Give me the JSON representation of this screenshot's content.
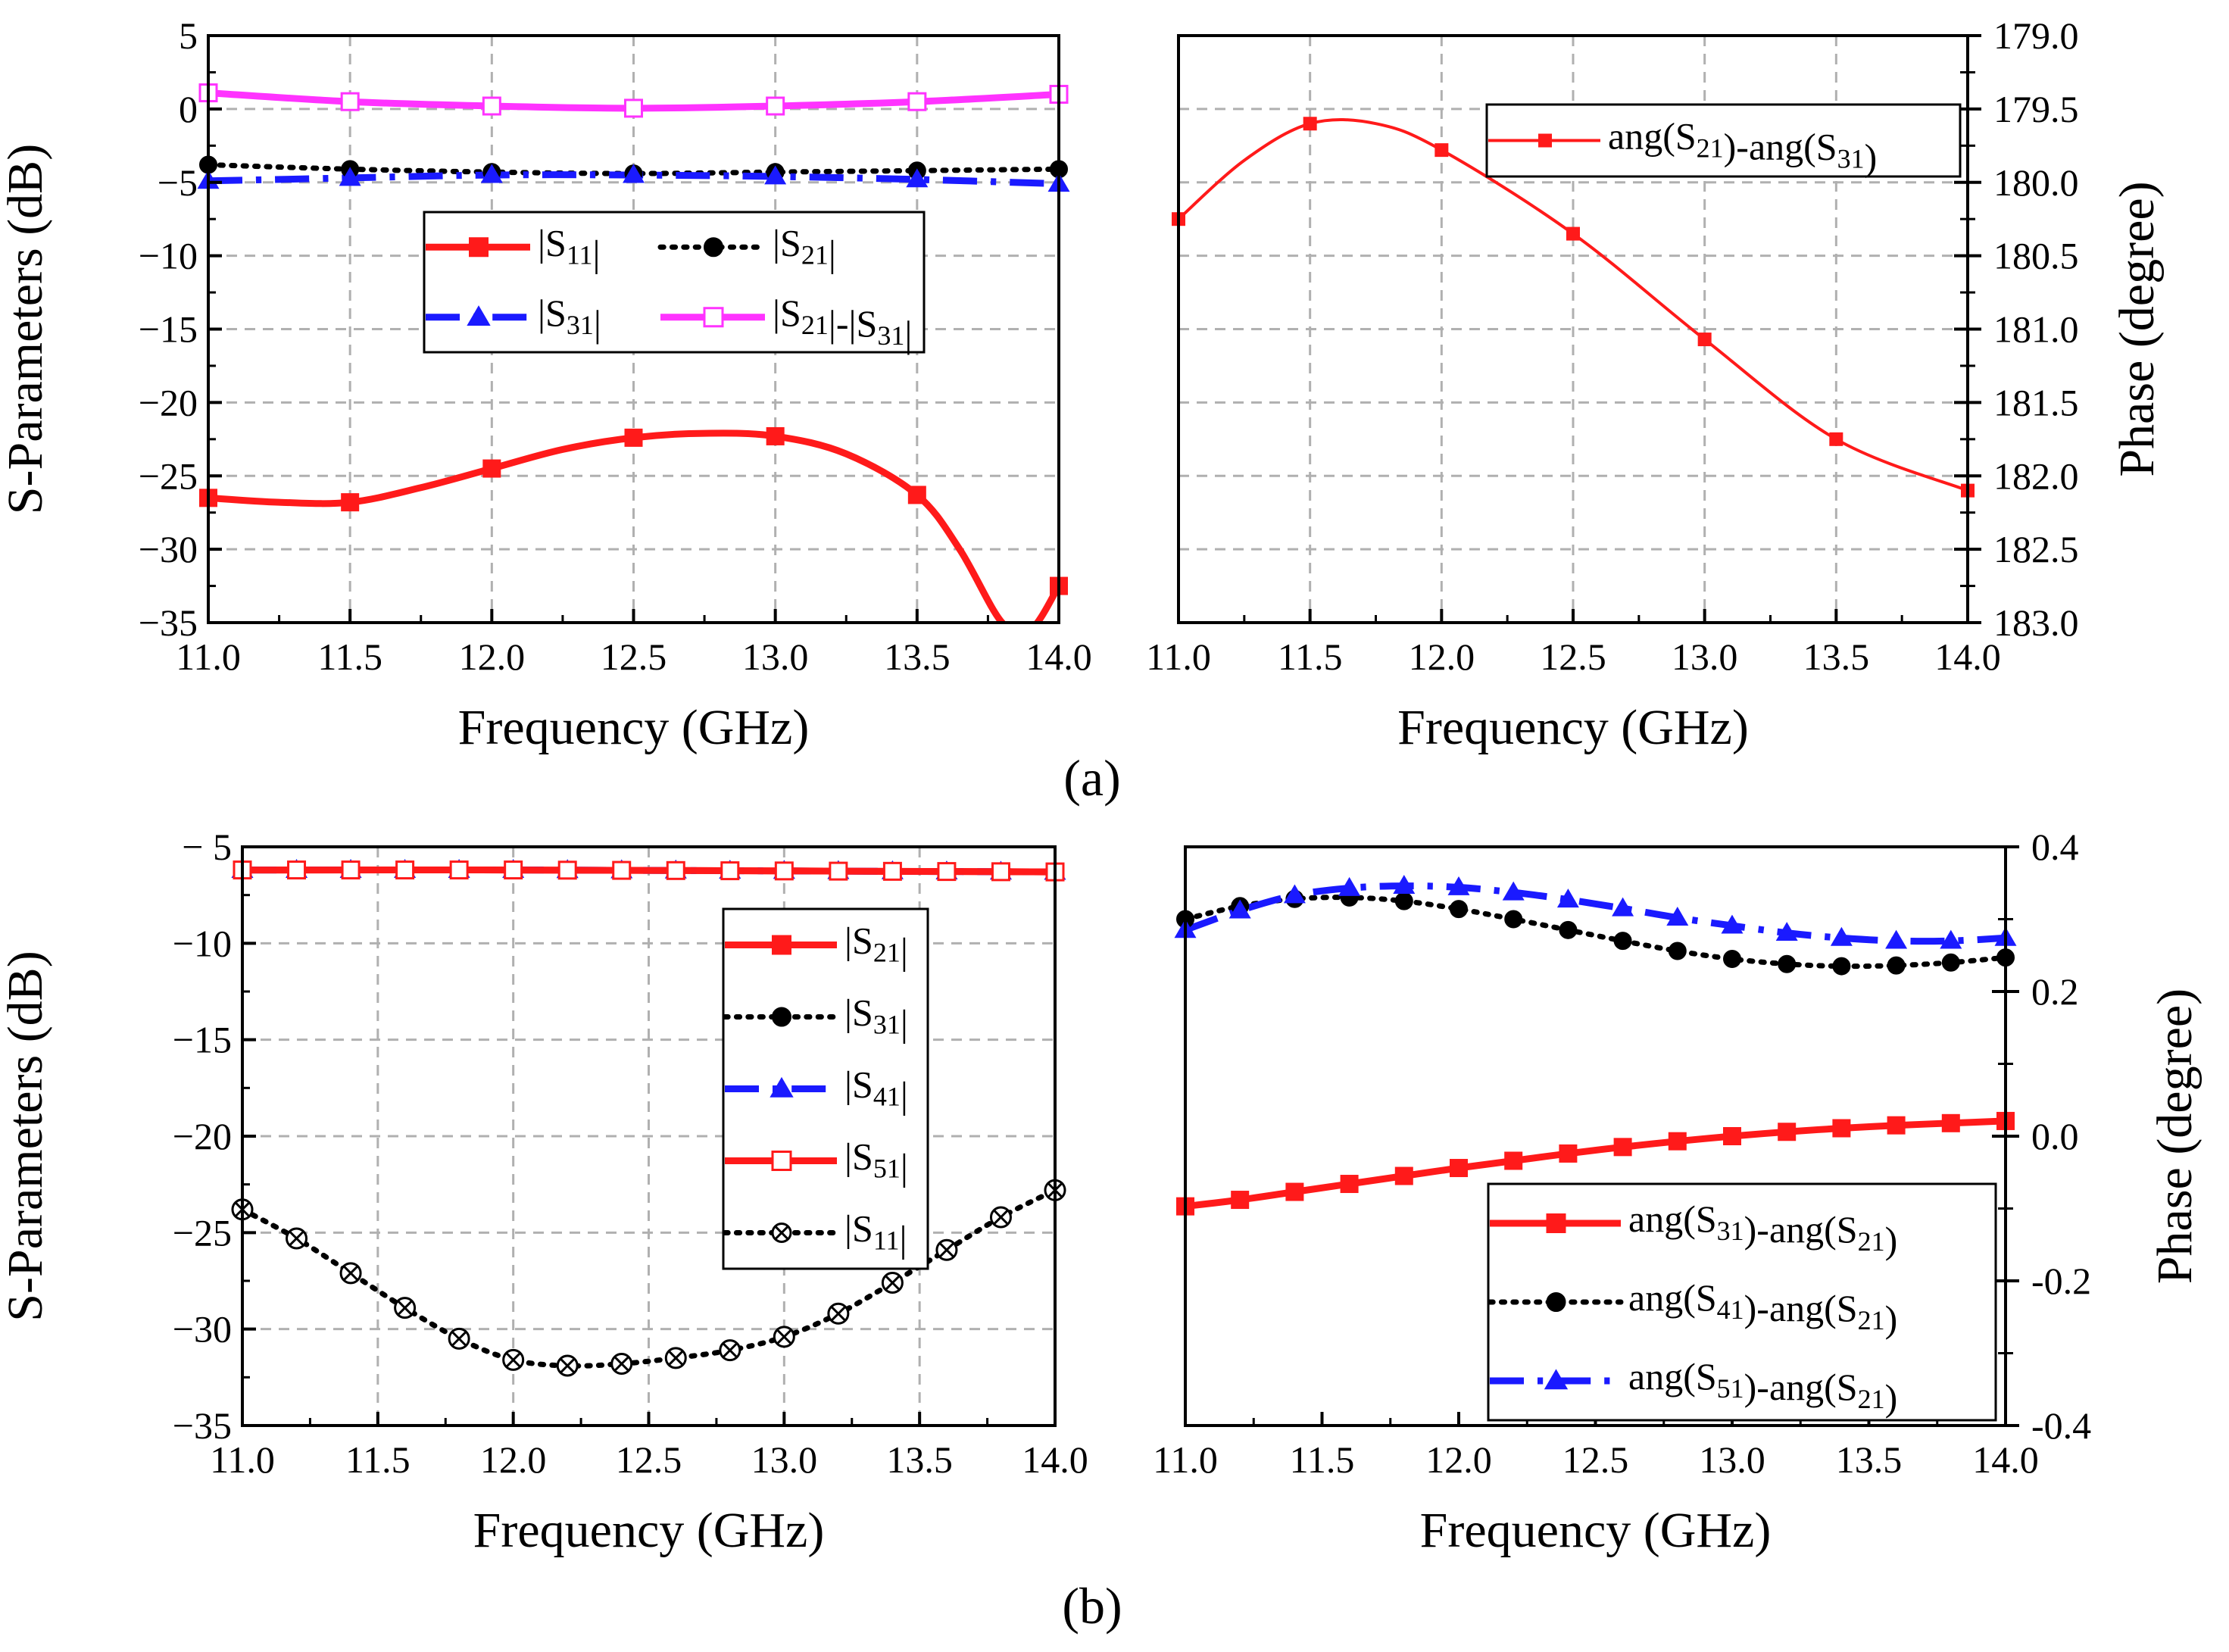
{
  "figure": {
    "caption_a": "(a)",
    "caption_b": "(b)"
  },
  "chart_data": [
    {
      "id": "a-left",
      "type": "line",
      "xlabel": "Frequency (GHz)",
      "ylabel": "S-Parameters (dB)",
      "xlim": [
        11.0,
        14.0
      ],
      "ylim": [
        -35,
        5
      ],
      "xticks": [
        11.0,
        11.5,
        12.0,
        12.5,
        13.0,
        13.5,
        14.0
      ],
      "xtick_labels": [
        "11.0",
        "11.5",
        "12.0",
        "12.5",
        "13.0",
        "13.5",
        "14.0"
      ],
      "yticks": [
        5,
        0,
        -5,
        -10,
        -15,
        -20,
        -25,
        -30,
        -35
      ],
      "ytick_labels": [
        "5",
        "0",
        "−5",
        "−10",
        "−15",
        "−20",
        "−25",
        "−30",
        "−35"
      ],
      "grid": true,
      "legend_position": "upper-center",
      "series": [
        {
          "name": "|S11|",
          "legend_main": "|S",
          "legend_sub": "11",
          "legend_tail": "|",
          "color": "#ff1a1a",
          "dash": "solid",
          "marker": "square",
          "filled": true,
          "width": 9,
          "x": [
            11.0,
            11.25,
            11.5,
            11.75,
            12.0,
            12.25,
            12.5,
            12.75,
            13.0,
            13.25,
            13.5,
            13.65,
            13.8,
            13.9,
            14.0
          ],
          "y": [
            -26.5,
            -26.8,
            -26.8,
            -25.8,
            -24.5,
            -23.2,
            -22.4,
            -22.1,
            -22.3,
            -23.5,
            -26.3,
            -30.0,
            -35.0,
            -35.5,
            -32.5
          ],
          "marker_x": [
            11.0,
            11.5,
            12.0,
            12.5,
            13.0,
            13.5,
            14.0
          ]
        },
        {
          "name": "|S21|",
          "legend_main": "|S",
          "legend_sub": "21",
          "legend_tail": "|",
          "color": "#000000",
          "dash": "dot",
          "marker": "circle",
          "filled": true,
          "width": 7,
          "x": [
            11.0,
            11.5,
            12.0,
            12.5,
            13.0,
            13.5,
            14.0
          ],
          "y": [
            -3.8,
            -4.1,
            -4.3,
            -4.4,
            -4.3,
            -4.2,
            -4.1
          ],
          "marker_x": [
            11.0,
            11.5,
            12.0,
            12.5,
            13.0,
            13.5,
            14.0
          ]
        },
        {
          "name": "|S31|",
          "legend_main": "|S",
          "legend_sub": "31",
          "legend_tail": "|",
          "color": "#1a1aff",
          "dash": "dashdot",
          "marker": "triangle",
          "filled": true,
          "width": 9,
          "x": [
            11.0,
            11.5,
            12.0,
            12.5,
            13.0,
            13.5,
            14.0
          ],
          "y": [
            -4.9,
            -4.7,
            -4.5,
            -4.5,
            -4.6,
            -4.8,
            -5.1
          ],
          "marker_x": [
            11.0,
            11.5,
            12.0,
            12.5,
            13.0,
            13.5,
            14.0
          ]
        },
        {
          "name": "|S21|-|S31|",
          "legend_main": "|S",
          "legend_sub": "21",
          "legend_tail": "|-|S31|",
          "color": "#ff33ff",
          "dash": "solid",
          "marker": "square",
          "filled": false,
          "width": 9,
          "x": [
            11.0,
            11.5,
            12.0,
            12.5,
            13.0,
            13.5,
            14.0
          ],
          "y": [
            1.1,
            0.5,
            0.2,
            0.05,
            0.2,
            0.5,
            1.0
          ],
          "marker_x": [
            11.0,
            11.5,
            12.0,
            12.5,
            13.0,
            13.5,
            14.0
          ]
        }
      ]
    },
    {
      "id": "a-right",
      "type": "line",
      "xlabel": "Frequency (GHz)",
      "ylabel": "Phase (degree)",
      "xlim": [
        11.0,
        14.0
      ],
      "ylim": [
        179.0,
        183.0
      ],
      "y_inverted": true,
      "y_axis_side": "right",
      "xticks": [
        11.0,
        11.5,
        12.0,
        12.5,
        13.0,
        13.5,
        14.0
      ],
      "xtick_labels": [
        "11.0",
        "11.5",
        "12.0",
        "12.5",
        "13.0",
        "13.5",
        "14.0"
      ],
      "yticks": [
        179.0,
        179.5,
        180.0,
        180.5,
        181.0,
        181.5,
        182.0,
        182.5,
        183.0
      ],
      "ytick_labels": [
        "179.0",
        "179.5",
        "180.0",
        "180.5",
        "181.0",
        "181.5",
        "182.0",
        "182.5",
        "183.0"
      ],
      "grid": true,
      "legend_position": "top-right",
      "series": [
        {
          "name": "ang(S21)-ang(S31)",
          "color": "#ff1a1a",
          "dash": "solid",
          "marker": "square",
          "filled": true,
          "width": 4,
          "x": [
            11.0,
            11.25,
            11.5,
            11.75,
            12.0,
            12.5,
            13.0,
            13.5,
            14.0
          ],
          "y": [
            180.25,
            179.85,
            179.6,
            179.6,
            179.78,
            180.35,
            181.07,
            181.75,
            182.1
          ],
          "marker_x": [
            11.0,
            11.5,
            12.0,
            12.5,
            13.0,
            13.5,
            14.0
          ]
        }
      ]
    },
    {
      "id": "b-left",
      "type": "line",
      "xlabel": "Frequency (GHz)",
      "ylabel": "S-Parameters (dB)",
      "xlim": [
        11.0,
        14.0
      ],
      "ylim": [
        -35,
        -5
      ],
      "xticks": [
        11.0,
        11.5,
        12.0,
        12.5,
        13.0,
        13.5,
        14.0
      ],
      "xtick_labels": [
        "11.0",
        "11.5",
        "12.0",
        "12.5",
        "13.0",
        "13.5",
        "14.0"
      ],
      "yticks": [
        -5,
        -10,
        -15,
        -20,
        -25,
        -30,
        -35
      ],
      "ytick_labels": [
        "− 5",
        "−10",
        "−15",
        "−20",
        "−25",
        "−30",
        "−35"
      ],
      "grid": true,
      "legend_position": "upper-right",
      "series": [
        {
          "name": "|S21|",
          "legend_main": "|S",
          "legend_sub": "21",
          "legend_tail": "|",
          "color": "#ff1a1a",
          "dash": "solid",
          "marker": "square",
          "filled": true,
          "width": 9,
          "x": [
            11.0,
            12.0,
            13.0,
            14.0
          ],
          "y": [
            -6.2,
            -6.2,
            -6.25,
            -6.3
          ],
          "marker_x": [
            11.0,
            11.2,
            11.4,
            11.6,
            11.8,
            12.0,
            12.2,
            12.4,
            12.6,
            12.8,
            13.0,
            13.2,
            13.4,
            13.6,
            13.8,
            14.0
          ]
        },
        {
          "name": "|S31|",
          "legend_main": "|S",
          "legend_sub": "31",
          "legend_tail": "|",
          "color": "#000000",
          "dash": "dot",
          "marker": "circle",
          "filled": true,
          "width": 7,
          "x": [
            11.0,
            12.0,
            13.0,
            14.0
          ],
          "y": [
            -6.2,
            -6.2,
            -6.25,
            -6.3
          ],
          "marker_x": [
            11.0,
            11.2,
            11.4,
            11.6,
            11.8,
            12.0,
            12.2,
            12.4,
            12.6,
            12.8,
            13.0,
            13.2,
            13.4,
            13.6,
            13.8,
            14.0
          ]
        },
        {
          "name": "|S41|",
          "legend_main": "|S",
          "legend_sub": "41",
          "legend_tail": "|",
          "color": "#1a1aff",
          "dash": "dashdot",
          "marker": "triangle",
          "filled": true,
          "width": 9,
          "x": [
            11.0,
            12.0,
            13.0,
            14.0
          ],
          "y": [
            -6.2,
            -6.2,
            -6.25,
            -6.3
          ],
          "marker_x": [
            11.0,
            11.2,
            11.4,
            11.6,
            11.8,
            12.0,
            12.2,
            12.4,
            12.6,
            12.8,
            13.0,
            13.2,
            13.4,
            13.6,
            13.8,
            14.0
          ]
        },
        {
          "name": "|S51|",
          "legend_main": "|S",
          "legend_sub": "51",
          "legend_tail": "|",
          "color": "#ff1a1a",
          "dash": "solid",
          "marker": "square",
          "filled": false,
          "width": 9,
          "x": [
            11.0,
            12.0,
            13.0,
            14.0
          ],
          "y": [
            -6.2,
            -6.2,
            -6.25,
            -6.3
          ],
          "marker_x": [
            11.0,
            11.2,
            11.4,
            11.6,
            11.8,
            12.0,
            12.2,
            12.4,
            12.6,
            12.8,
            13.0,
            13.2,
            13.4,
            13.6,
            13.8,
            14.0
          ]
        },
        {
          "name": "|S11|",
          "legend_main": "|S",
          "legend_sub": "11",
          "legend_tail": "|",
          "color": "#000000",
          "dash": "dot",
          "marker": "crosscircle",
          "filled": false,
          "width": 7,
          "x": [
            11.0,
            11.2,
            11.4,
            11.6,
            11.8,
            12.0,
            12.2,
            12.4,
            12.6,
            12.8,
            13.0,
            13.2,
            13.4,
            13.6,
            13.8,
            14.0
          ],
          "y": [
            -23.8,
            -25.3,
            -27.1,
            -28.9,
            -30.5,
            -31.6,
            -31.9,
            -31.8,
            -31.5,
            -31.1,
            -30.4,
            -29.2,
            -27.6,
            -25.9,
            -24.2,
            -22.8
          ],
          "marker_x": [
            11.0,
            11.2,
            11.4,
            11.6,
            11.8,
            12.0,
            12.2,
            12.4,
            12.6,
            12.8,
            13.0,
            13.2,
            13.4,
            13.6,
            13.8,
            14.0
          ]
        }
      ]
    },
    {
      "id": "b-right",
      "type": "line",
      "xlabel": "Frequency (GHz)",
      "ylabel": "Phase (degree)",
      "xlim": [
        11.0,
        14.0
      ],
      "ylim": [
        -0.4,
        0.4
      ],
      "y_axis_side": "right",
      "xticks": [
        11.0,
        11.5,
        12.0,
        12.5,
        13.0,
        13.5,
        14.0
      ],
      "xtick_labels": [
        "11.0",
        "11.5",
        "12.0",
        "12.5",
        "13.0",
        "13.5",
        "14.0"
      ],
      "yticks": [
        0.4,
        0.2,
        0.0,
        -0.2,
        -0.4
      ],
      "ytick_labels": [
        "0.4",
        "0.2",
        "0.0",
        "-0.2",
        "-0.4"
      ],
      "grid": false,
      "legend_position": "bottom-right",
      "series": [
        {
          "name": "ang(S31)-ang(S21)",
          "color": "#ff1a1a",
          "dash": "solid",
          "marker": "square",
          "filled": true,
          "width": 9,
          "x": [
            11.0,
            11.2,
            11.4,
            11.6,
            11.8,
            12.0,
            12.2,
            12.4,
            12.6,
            12.8,
            13.0,
            13.2,
            13.4,
            13.6,
            13.8,
            14.0
          ],
          "y": [
            -0.097,
            -0.088,
            -0.077,
            -0.066,
            -0.055,
            -0.044,
            -0.034,
            -0.024,
            -0.015,
            -0.007,
            0.0,
            0.006,
            0.011,
            0.015,
            0.018,
            0.021
          ],
          "marker_x": [
            11.0,
            11.2,
            11.4,
            11.6,
            11.8,
            12.0,
            12.2,
            12.4,
            12.6,
            12.8,
            13.0,
            13.2,
            13.4,
            13.6,
            13.8,
            14.0
          ]
        },
        {
          "name": "ang(S41)-ang(S21)",
          "color": "#000000",
          "dash": "dot",
          "marker": "circle",
          "filled": true,
          "width": 7,
          "x": [
            11.0,
            11.2,
            11.4,
            11.6,
            11.8,
            12.0,
            12.2,
            12.4,
            12.6,
            12.8,
            13.0,
            13.2,
            13.4,
            13.6,
            13.8,
            14.0
          ],
          "y": [
            0.3,
            0.318,
            0.328,
            0.33,
            0.325,
            0.314,
            0.3,
            0.285,
            0.27,
            0.256,
            0.245,
            0.238,
            0.235,
            0.236,
            0.24,
            0.247
          ],
          "marker_x": [
            11.0,
            11.2,
            11.4,
            11.6,
            11.8,
            12.0,
            12.2,
            12.4,
            12.6,
            12.8,
            13.0,
            13.2,
            13.4,
            13.6,
            13.8,
            14.0
          ]
        },
        {
          "name": "ang(S51)-ang(S21)",
          "color": "#1a1aff",
          "dash": "dashdot",
          "marker": "triangle",
          "filled": true,
          "width": 9,
          "x": [
            11.0,
            11.2,
            11.4,
            11.6,
            11.8,
            12.0,
            12.2,
            12.4,
            12.6,
            12.8,
            13.0,
            13.2,
            13.4,
            13.6,
            13.8,
            14.0
          ],
          "y": [
            0.285,
            0.312,
            0.333,
            0.343,
            0.346,
            0.344,
            0.337,
            0.327,
            0.315,
            0.302,
            0.291,
            0.281,
            0.274,
            0.27,
            0.27,
            0.274
          ],
          "marker_x": [
            11.0,
            11.2,
            11.4,
            11.6,
            11.8,
            12.0,
            12.2,
            12.4,
            12.6,
            12.8,
            13.0,
            13.2,
            13.4,
            13.6,
            13.8,
            14.0
          ]
        }
      ]
    }
  ]
}
